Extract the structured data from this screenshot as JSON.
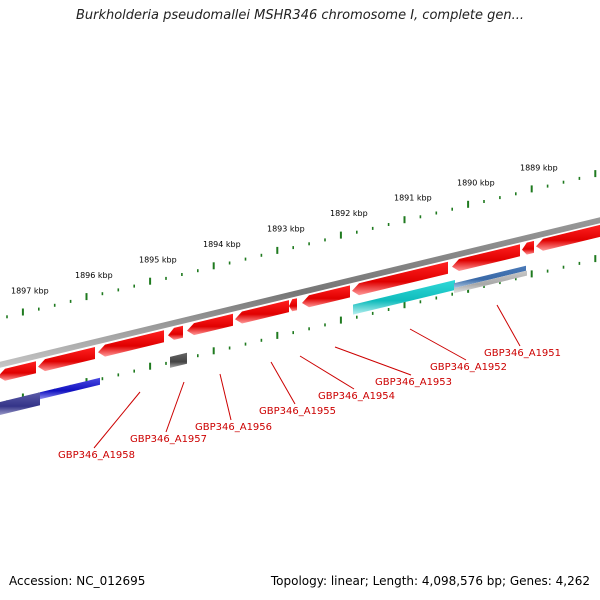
{
  "title": "Burkholderia pseudomallei MSHR346 chromosome I, complete gen...",
  "footer": {
    "accession": "Accession: NC_012695",
    "summary": "Topology: linear; Length: 4,098,576 bp; Genes: 4,262"
  },
  "scale_labels": [
    "1889 kbp",
    "1890 kbp",
    "1891 kbp",
    "1892 kbp",
    "1893 kbp",
    "1894 kbp",
    "1895 kbp",
    "1896 kbp",
    "1897 kbp"
  ],
  "gene_labels": [
    "GBP346_A1951",
    "GBP346_A1952",
    "GBP346_A1953",
    "GBP346_A1954",
    "GBP346_A1955",
    "GBP346_A1956",
    "GBP346_A1957",
    "GBP346_A1958"
  ],
  "colors": {
    "gene_red": "#ee0000",
    "gene_cyan": "#22cccc",
    "gene_blue": "#1a1acc",
    "gene_gray": "#555555",
    "backbone": "#777777",
    "ticks": "#1f7a1f",
    "label_red": "#cc0000"
  }
}
